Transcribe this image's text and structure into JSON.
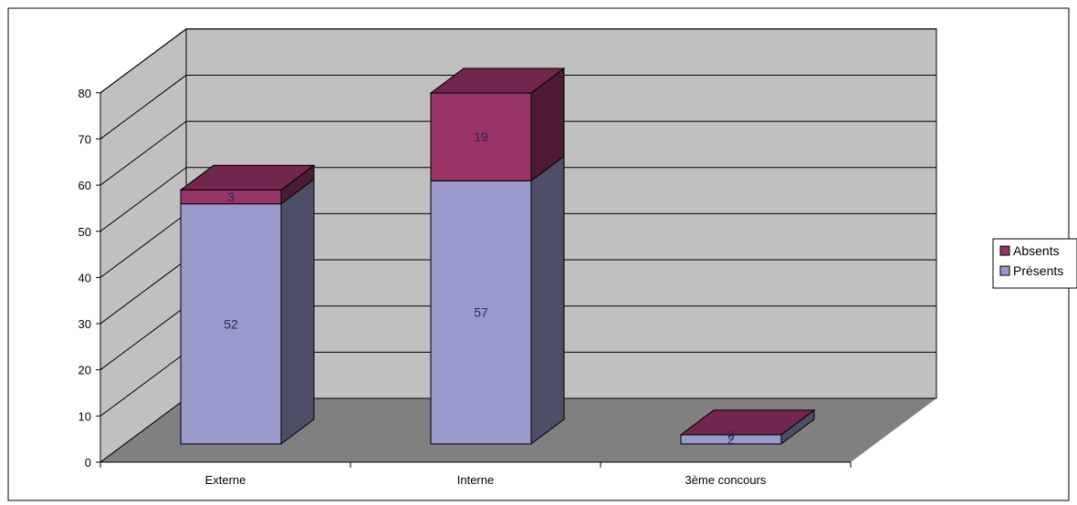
{
  "chart_data": {
    "type": "bar",
    "stacked": true,
    "three_d": true,
    "categories": [
      "Externe",
      "Interne",
      "3ème concours"
    ],
    "series": [
      {
        "name": "Présents",
        "values": [
          52,
          57,
          2
        ],
        "color": "#9999cc"
      },
      {
        "name": "Absents",
        "values": [
          3,
          19,
          0
        ],
        "color": "#993366"
      }
    ],
    "y_ticks": [
      0,
      10,
      20,
      30,
      40,
      50,
      60,
      70,
      80
    ],
    "ylim": [
      0,
      80
    ],
    "grid": true,
    "legend_position": "right",
    "title": "",
    "xlabel": "",
    "ylabel": ""
  },
  "colors": {
    "back_wall": "#c0c0c0",
    "side_wall": "#c0c0c0",
    "floor": "#808080",
    "grid_line": "#000000",
    "border": "#000000"
  }
}
